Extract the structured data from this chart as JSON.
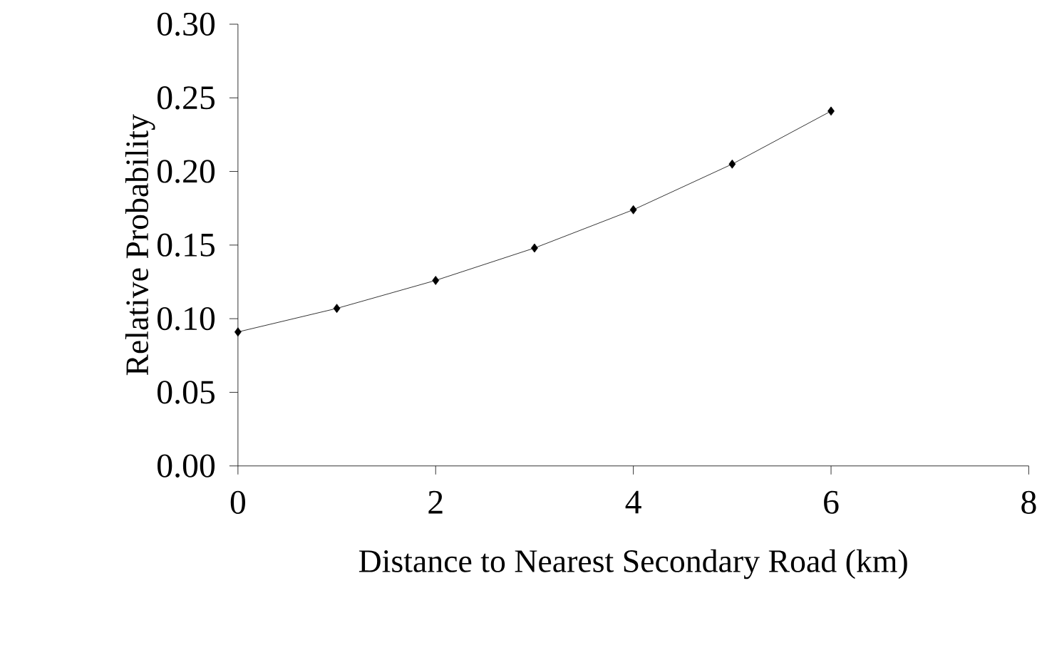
{
  "chart_data": {
    "type": "line",
    "xlabel": "Distance to Nearest Secondary Road (km)",
    "ylabel": "Relative Probability",
    "x": [
      0,
      1,
      2,
      3,
      4,
      5,
      6
    ],
    "series": [
      {
        "color": "#000000",
        "values": [
          0.091,
          0.107,
          0.126,
          0.148,
          0.174,
          0.205,
          0.241
        ]
      }
    ],
    "xlim": [
      0,
      8
    ],
    "ylim": [
      0,
      0.3
    ],
    "xticks": [
      0,
      2,
      4,
      6,
      8
    ],
    "yticks": [
      {
        "value": 0,
        "label": "0.00"
      },
      {
        "value": 0.05,
        "label": "0.05"
      },
      {
        "value": 0.1,
        "label": "0.10"
      },
      {
        "value": 0.15,
        "label": "0.15"
      },
      {
        "value": 0.2,
        "label": "0.20"
      },
      {
        "value": 0.25,
        "label": "0.25"
      },
      {
        "value": 0.3,
        "label": "0.30"
      }
    ],
    "grid": false,
    "marker": "diamond",
    "line_style": "solid"
  }
}
